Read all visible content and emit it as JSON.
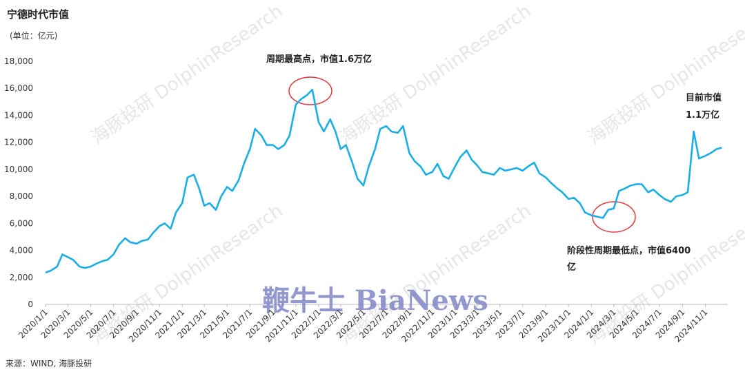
{
  "chart_data": {
    "type": "line",
    "title": "宁德时代市值",
    "subtitle": "(单位：亿元)",
    "annotations": [
      "周期最高点，市值1.6万亿",
      "目前市值",
      "1.1万亿",
      "阶段性周期最低点，市值6400",
      "亿"
    ],
    "source": "来源：WIND, 海豚投研",
    "watermark": "鞭牛士 BiaNews",
    "watermark2": "海豚投研 DolphinResearch",
    "x": [
      "2020/1/1",
      "2020/1/15",
      "2020/2/1",
      "2020/2/15",
      "2020/3/1",
      "2020/3/15",
      "2020/4/1",
      "2020/4/15",
      "2020/5/1",
      "2020/5/15",
      "2020/6/1",
      "2020/6/15",
      "2020/7/1",
      "2020/7/15",
      "2020/8/1",
      "2020/8/15",
      "2020/9/1",
      "2020/9/15",
      "2020/10/1",
      "2020/10/15",
      "2020/11/1",
      "2020/11/15",
      "2020/12/1",
      "2020/12/15",
      "2021/1/1",
      "2021/1/15",
      "2021/2/1",
      "2021/2/15",
      "2021/3/1",
      "2021/3/15",
      "2021/4/1",
      "2021/4/15",
      "2021/5/1",
      "2021/5/15",
      "2021/6/1",
      "2021/6/15",
      "2021/7/1",
      "2021/7/15",
      "2021/8/1",
      "2021/8/15",
      "2021/9/1",
      "2021/9/15",
      "2021/10/1",
      "2021/10/15",
      "2021/11/1",
      "2021/11/15",
      "2021/12/1",
      "2021/12/15",
      "2022/1/1",
      "2022/1/15",
      "2022/2/1",
      "2022/2/15",
      "2022/3/1",
      "2022/3/15",
      "2022/4/1",
      "2022/4/15",
      "2022/5/1",
      "2022/5/15",
      "2022/6/1",
      "2022/6/15",
      "2022/7/1",
      "2022/7/15",
      "2022/8/1",
      "2022/8/15",
      "2022/9/1",
      "2022/9/15",
      "2022/10/1",
      "2022/10/15",
      "2022/11/1",
      "2022/11/15",
      "2022/12/1",
      "2022/12/15",
      "2023/1/1",
      "2023/1/15",
      "2023/2/1",
      "2023/2/15",
      "2023/3/1",
      "2023/3/15",
      "2023/4/1",
      "2023/4/15",
      "2023/5/1",
      "2023/5/15",
      "2023/6/1",
      "2023/6/15",
      "2023/7/1",
      "2023/7/15",
      "2023/8/1",
      "2023/8/15",
      "2023/9/1",
      "2023/9/15",
      "2023/10/1",
      "2023/10/15",
      "2023/11/1",
      "2023/11/15",
      "2023/12/1",
      "2023/12/15",
      "2024/1/1",
      "2024/1/15",
      "2024/2/1",
      "2024/2/15",
      "2024/3/1",
      "2024/3/15",
      "2024/4/1",
      "2024/4/15",
      "2024/5/1",
      "2024/5/15",
      "2024/6/1",
      "2024/6/15",
      "2024/7/1",
      "2024/7/15",
      "2024/8/1",
      "2024/8/15",
      "2024/9/1",
      "2024/9/15",
      "2024/10/1",
      "2024/10/15",
      "2024/11/1",
      "2024/11/15",
      "2024/12/1",
      "2024/12/15"
    ],
    "series": [
      {
        "name": "宁德时代市值",
        "color": "#1aaee6",
        "values": [
          2350,
          2500,
          2800,
          3700,
          3500,
          3300,
          2800,
          2700,
          2800,
          3000,
          3200,
          3300,
          3700,
          4400,
          4900,
          4600,
          4500,
          4700,
          4800,
          5300,
          5800,
          6000,
          5600,
          6800,
          7500,
          9400,
          9600,
          8600,
          7300,
          7500,
          7000,
          8000,
          8700,
          8400,
          9200,
          10400,
          11500,
          13000,
          12500,
          11800,
          11800,
          11500,
          11800,
          12500,
          14800,
          15200,
          15500,
          15900,
          13500,
          12800,
          13700,
          12800,
          11500,
          11800,
          10500,
          9300,
          8800,
          10200,
          11500,
          13000,
          13200,
          12800,
          12700,
          13200,
          11200,
          10600,
          10200,
          9600,
          9800,
          10400,
          9500,
          9300,
          10200,
          10900,
          11400,
          10700,
          10300,
          9800,
          9700,
          9600,
          10100,
          9900,
          10000,
          10100,
          9900,
          10200,
          10500,
          9700,
          9400,
          9000,
          8600,
          8300,
          7800,
          7900,
          7500,
          6800,
          6600,
          6500,
          6400,
          7000,
          7100,
          8400,
          8600,
          8800,
          8900,
          8900,
          8300,
          8500,
          8100,
          7800,
          7600,
          8000,
          8100,
          8300,
          12800,
          10800,
          11000,
          11200,
          11500,
          11600
        ]
      }
    ],
    "xlim": [
      "2020/1/1",
      "2024/12/31"
    ],
    "xticks": [
      "2020/1/1",
      "2020/3/1",
      "2020/5/1",
      "2020/7/1",
      "2020/9/1",
      "2020/11/1",
      "2021/1/1",
      "2021/3/1",
      "2021/5/1",
      "2021/7/1",
      "2021/9/1",
      "2021/11/1",
      "2022/1/1",
      "2022/3/1",
      "2022/5/1",
      "2022/7/1",
      "2022/9/1",
      "2022/11/1",
      "2023/1/1",
      "2023/3/1",
      "2023/5/1",
      "2023/7/1",
      "2023/9/1",
      "2023/11/1",
      "2024/1/1",
      "2024/3/1",
      "2024/5/1",
      "2024/7/1",
      "2024/9/1",
      "2024/11/1"
    ],
    "ylim": [
      0,
      18000
    ],
    "yticks": [
      0,
      {
        "value": 2000,
        "label": "2,000"
      },
      {
        "value": 4000,
        "label": "4,000"
      },
      {
        "value": 6000,
        "label": "6,000"
      },
      {
        "value": 8000,
        "label": "8,000"
      },
      {
        "value": 10000,
        "label": "10,000"
      },
      {
        "value": 12000,
        "label": "12,000"
      },
      {
        "value": 14000,
        "label": "14,000"
      },
      {
        "value": 16000,
        "label": "16,000"
      },
      {
        "value": 18000,
        "label": "18,000"
      }
    ],
    "grid": false
  }
}
